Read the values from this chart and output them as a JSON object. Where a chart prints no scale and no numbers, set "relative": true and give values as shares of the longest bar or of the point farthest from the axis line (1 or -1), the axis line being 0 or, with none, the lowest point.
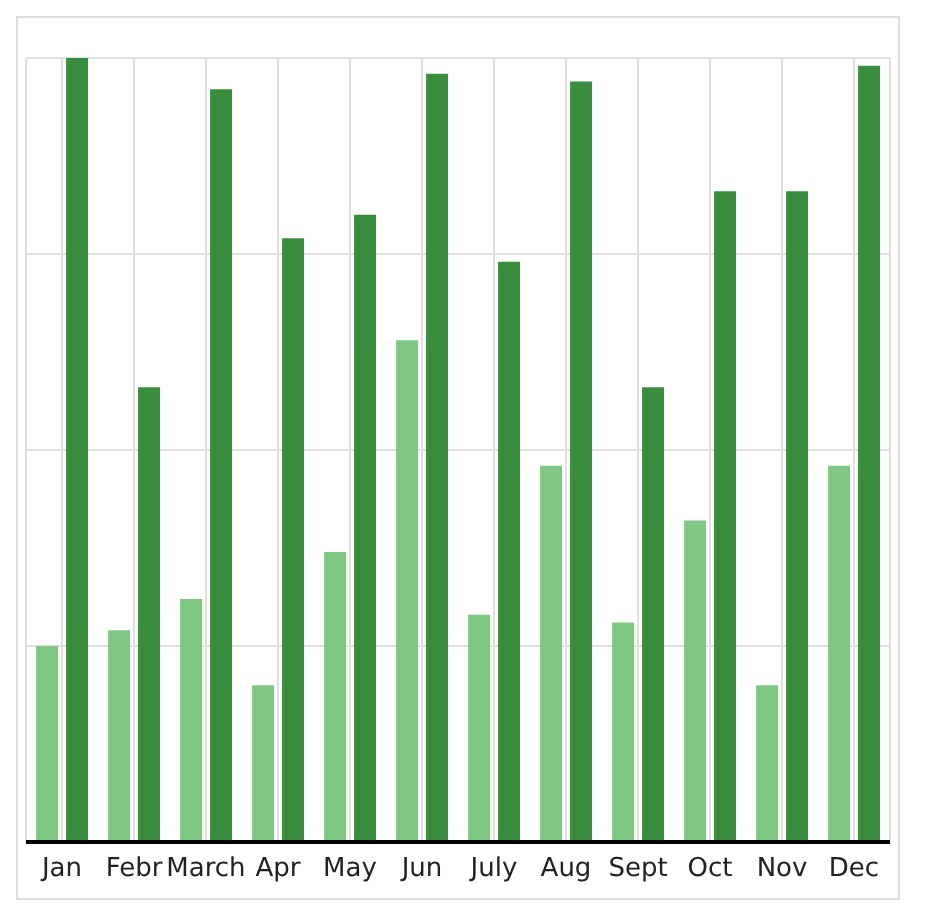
{
  "chart_data": {
    "type": "bar",
    "relative": true,
    "grid": true,
    "categories": [
      "Jan",
      "Febr",
      "March",
      "Apr",
      "May",
      "Jun",
      "July",
      "Aug",
      "Sept",
      "Oct",
      "Nov",
      "Dec"
    ],
    "series": [
      {
        "color": "#81c784",
        "values": [
          0.25,
          0.27,
          0.31,
          0.2,
          0.37,
          0.64,
          0.29,
          0.48,
          0.28,
          0.41,
          0.2,
          0.48
        ]
      },
      {
        "color": "#388e3c",
        "values": [
          1.0,
          0.58,
          0.96,
          0.77,
          0.8,
          0.98,
          0.74,
          0.97,
          0.58,
          0.83,
          0.83,
          0.99
        ]
      }
    ]
  }
}
